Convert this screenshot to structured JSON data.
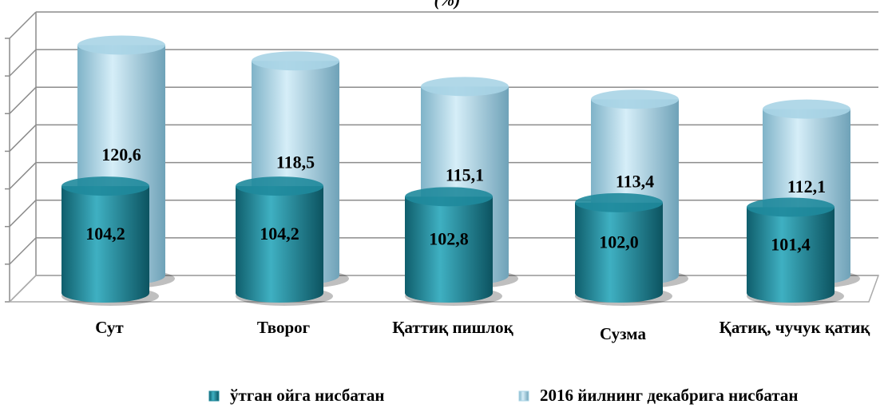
{
  "chart_data": {
    "type": "bar",
    "title": "(%)",
    "categories": [
      "Сут",
      "Творог",
      "Қаттиқ пишлоқ",
      "Сузма",
      "Қатиқ, чучук қатиқ"
    ],
    "series": [
      {
        "name": "ўтган ойга нисбатан",
        "color": "#1f8a9c",
        "values": [
          104.2,
          104.2,
          102.8,
          102.0,
          101.4
        ],
        "value_labels": [
          "104,2",
          "104,2",
          "102,8",
          "102,0",
          "101,4"
        ]
      },
      {
        "name": "2016 йилнинг декабрига нисбатан",
        "color": "#a9d4e6",
        "values": [
          120.6,
          118.5,
          115.1,
          113.4,
          112.1
        ],
        "value_labels": [
          "120,6",
          "118,5",
          "115,1",
          "113,4",
          "112,1"
        ]
      }
    ],
    "ylim": [
      90,
      125
    ],
    "yticks": [
      90,
      95,
      100,
      105,
      110,
      115,
      120,
      125
    ],
    "grid": true
  }
}
